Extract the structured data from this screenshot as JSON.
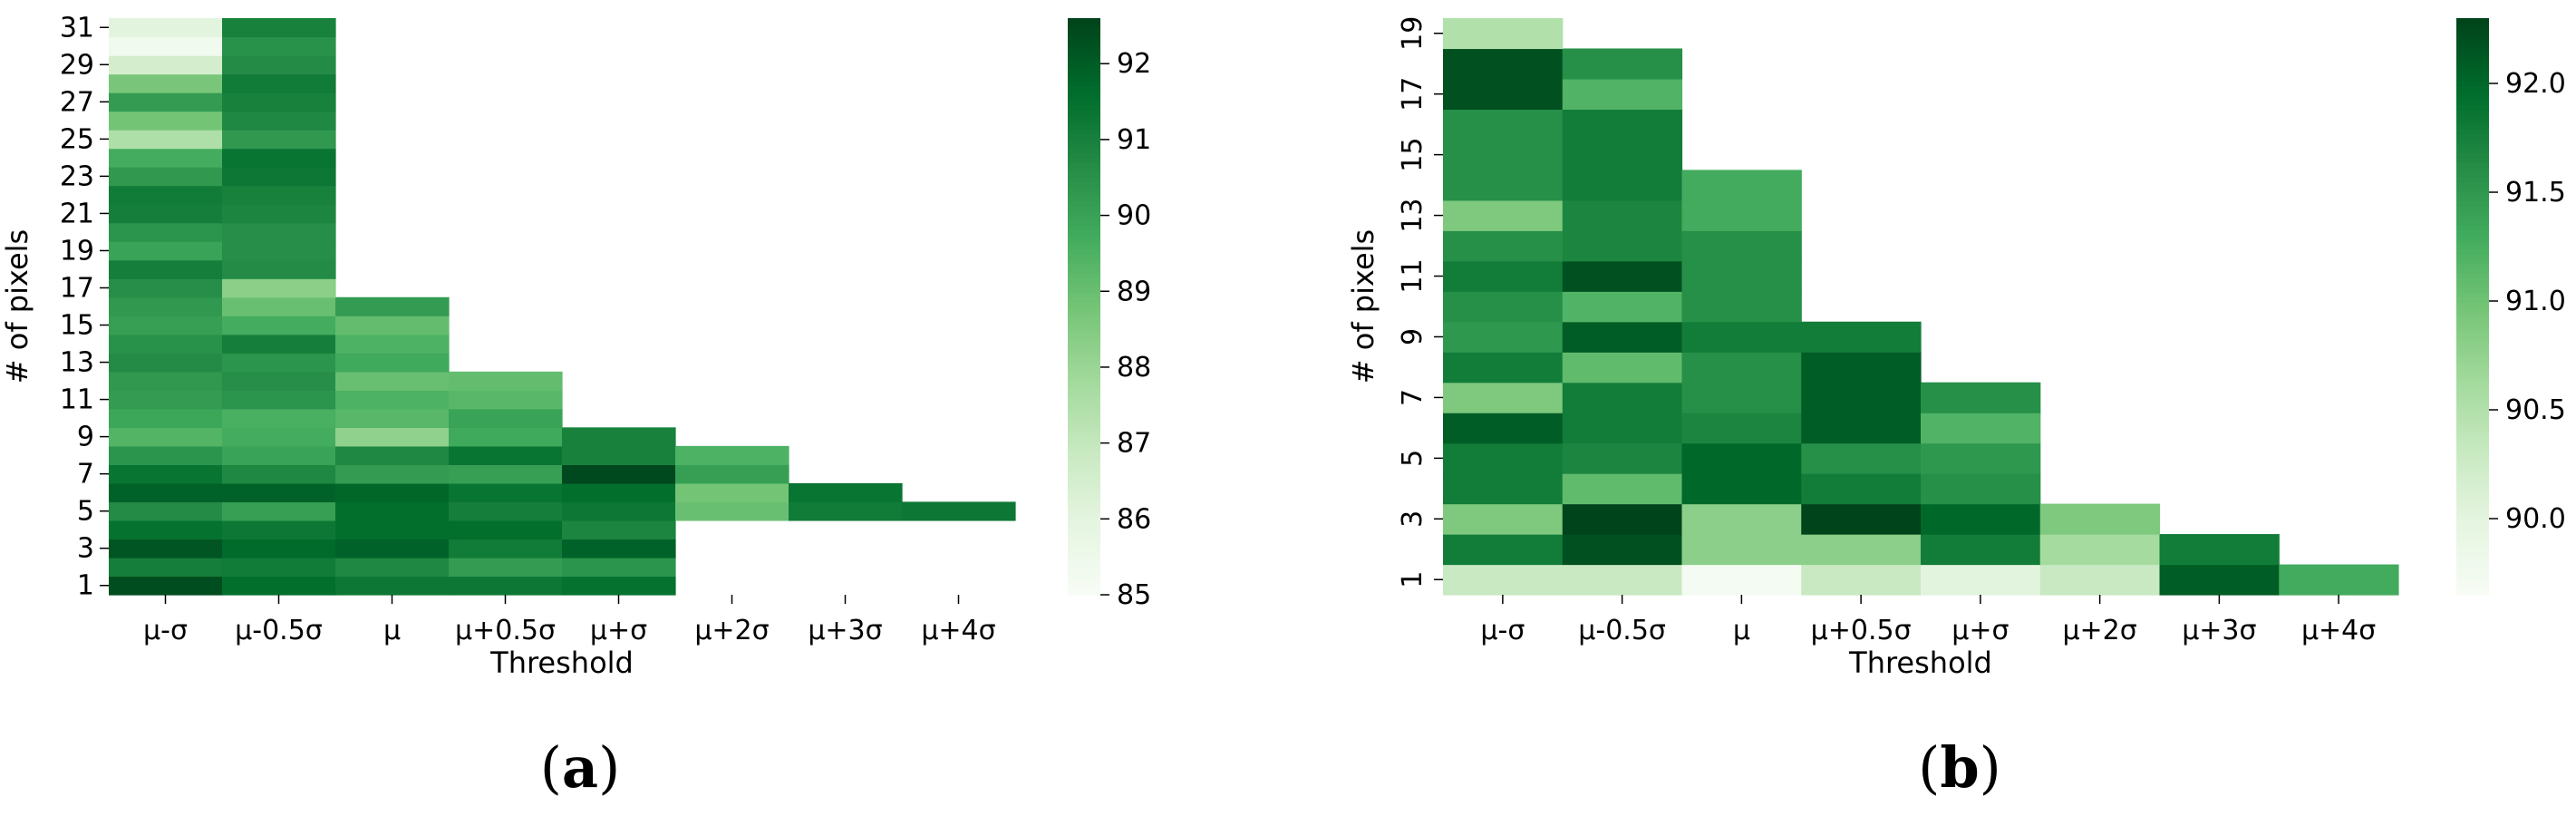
{
  "chart_data": [
    {
      "type": "heatmap",
      "panel_label": {
        "open": "(",
        "letter": "a",
        "close": ")"
      },
      "xlabel": "Threshold",
      "ylabel": "# of pixels",
      "categories": [
        "μ-σ",
        "μ-0.5σ",
        "μ",
        "μ+0.5σ",
        "μ+σ",
        "μ+2σ",
        "μ+3σ",
        "μ+4σ"
      ],
      "y_values": [
        1,
        2,
        3,
        4,
        5,
        6,
        7,
        8,
        9,
        10,
        11,
        12,
        13,
        14,
        15,
        16,
        17,
        18,
        19,
        20,
        21,
        22,
        23,
        24,
        25,
        26,
        27,
        28,
        29,
        30,
        31
      ],
      "y_tick_labels": [
        "1",
        "3",
        "5",
        "7",
        "9",
        "11",
        "13",
        "15",
        "17",
        "19",
        "21",
        "23",
        "25",
        "27",
        "29",
        "31"
      ],
      "colorbar": {
        "min": 85,
        "max": 92.6,
        "ticks": [
          "85",
          "86",
          "87",
          "88",
          "89",
          "90",
          "91",
          "92"
        ],
        "tick_values": [
          85,
          86,
          87,
          88,
          89,
          90,
          91,
          92
        ]
      },
      "colormap": "Greens",
      "values": [
        [
          92.4,
          91.6,
          91.3,
          91.3,
          91.5,
          null,
          null,
          null
        ],
        [
          91.1,
          91.2,
          90.8,
          90.2,
          90.4,
          null,
          null,
          null
        ],
        [
          92.2,
          91.7,
          91.9,
          91.2,
          91.9,
          null,
          null,
          null
        ],
        [
          91.5,
          91.3,
          91.6,
          91.6,
          90.9,
          null,
          null,
          null
        ],
        [
          90.7,
          90.1,
          91.6,
          91.1,
          91.3,
          89.0,
          91.2,
          91.3
        ],
        [
          91.9,
          91.9,
          91.8,
          91.4,
          91.6,
          88.8,
          91.4,
          null
        ],
        [
          91.4,
          90.8,
          90.2,
          90.1,
          92.5,
          90.1,
          null,
          null
        ],
        [
          90.4,
          90.0,
          90.8,
          91.4,
          91.0,
          89.5,
          null,
          null
        ],
        [
          89.4,
          89.7,
          88.2,
          89.8,
          91.0,
          null,
          null,
          null
        ],
        [
          89.9,
          89.6,
          89.3,
          90.0,
          null,
          null,
          null,
          null
        ],
        [
          90.2,
          90.4,
          89.5,
          89.3,
          null,
          null,
          null,
          null
        ],
        [
          90.3,
          90.6,
          89.0,
          89.1,
          null,
          null,
          null,
          null
        ],
        [
          90.7,
          90.4,
          89.8,
          null,
          null,
          null,
          null,
          null
        ],
        [
          90.5,
          91.1,
          89.5,
          null,
          null,
          null,
          null,
          null
        ],
        [
          90.1,
          89.7,
          89.1,
          null,
          null,
          null,
          null,
          null
        ],
        [
          90.3,
          89.0,
          90.2,
          null,
          null,
          null,
          null,
          null
        ],
        [
          90.6,
          88.3,
          null,
          null,
          null,
          null,
          null,
          null
        ],
        [
          91.1,
          90.7,
          null,
          null,
          null,
          null,
          null,
          null
        ],
        [
          90.0,
          90.6,
          null,
          null,
          null,
          null,
          null,
          null
        ],
        [
          90.4,
          90.6,
          null,
          null,
          null,
          null,
          null,
          null
        ],
        [
          91.1,
          90.9,
          null,
          null,
          null,
          null,
          null,
          null
        ],
        [
          91.2,
          91.0,
          null,
          null,
          null,
          null,
          null,
          null
        ],
        [
          90.3,
          91.3,
          null,
          null,
          null,
          null,
          null,
          null
        ],
        [
          89.7,
          91.4,
          null,
          null,
          null,
          null,
          null,
          null
        ],
        [
          87.5,
          90.3,
          null,
          null,
          null,
          null,
          null,
          null
        ],
        [
          88.8,
          90.8,
          null,
          null,
          null,
          null,
          null,
          null
        ],
        [
          90.2,
          91.0,
          null,
          null,
          null,
          null,
          null,
          null
        ],
        [
          88.7,
          91.2,
          null,
          null,
          null,
          null,
          null,
          null
        ],
        [
          86.5,
          90.7,
          null,
          null,
          null,
          null,
          null,
          null
        ],
        [
          85.3,
          90.5,
          null,
          null,
          null,
          null,
          null,
          null
        ],
        [
          86.0,
          91.0,
          null,
          null,
          null,
          null,
          null,
          null
        ]
      ]
    },
    {
      "type": "heatmap",
      "panel_label": {
        "open": "(",
        "letter": "b",
        "close": ")"
      },
      "xlabel": "Threshold",
      "ylabel": "# of pixels",
      "categories": [
        "μ-σ",
        "μ-0.5σ",
        "μ",
        "μ+0.5σ",
        "μ+σ",
        "μ+2σ",
        "μ+3σ",
        "μ+4σ"
      ],
      "y_values": [
        1,
        2,
        3,
        4,
        5,
        6,
        7,
        8,
        9,
        10,
        11,
        12,
        13,
        14,
        15,
        16,
        17,
        18,
        19
      ],
      "y_tick_labels": [
        "1",
        "3",
        "5",
        "7",
        "9",
        "11",
        "13",
        "15",
        "17",
        "19"
      ],
      "colorbar": {
        "min": 89.65,
        "max": 92.3,
        "ticks": [
          "90.0",
          "90.5",
          "91.0",
          "91.5",
          "92.0"
        ],
        "tick_values": [
          90.0,
          90.5,
          91.0,
          91.5,
          92.0
        ]
      },
      "colormap": "Greens",
      "values": [
        [
          90.3,
          90.3,
          89.7,
          90.3,
          90.0,
          90.3,
          92.1,
          91.3
        ],
        [
          91.8,
          92.2,
          90.8,
          90.8,
          91.8,
          90.6,
          91.8,
          null
        ],
        [
          90.9,
          92.3,
          90.8,
          92.3,
          92.0,
          90.9,
          null,
          null
        ],
        [
          91.8,
          91.1,
          92.0,
          91.8,
          91.6,
          null,
          null,
          null
        ],
        [
          91.8,
          91.7,
          92.0,
          91.6,
          91.5,
          null,
          null,
          null
        ],
        [
          92.1,
          91.8,
          91.7,
          92.1,
          91.2,
          null,
          null,
          null
        ],
        [
          90.9,
          91.8,
          91.6,
          92.1,
          91.6,
          null,
          null,
          null
        ],
        [
          91.8,
          91.1,
          91.6,
          92.1,
          null,
          null,
          null,
          null
        ],
        [
          91.5,
          92.1,
          91.8,
          91.8,
          null,
          null,
          null,
          null
        ],
        [
          91.6,
          91.2,
          91.6,
          null,
          null,
          null,
          null,
          null
        ],
        [
          91.8,
          92.2,
          91.6,
          null,
          null,
          null,
          null,
          null
        ],
        [
          91.6,
          91.7,
          91.6,
          null,
          null,
          null,
          null,
          null
        ],
        [
          90.9,
          91.7,
          91.3,
          null,
          null,
          null,
          null,
          null
        ],
        [
          91.6,
          91.8,
          91.3,
          null,
          null,
          null,
          null,
          null
        ],
        [
          91.6,
          91.8,
          null,
          null,
          null,
          null,
          null,
          null
        ],
        [
          91.6,
          91.8,
          null,
          null,
          null,
          null,
          null,
          null
        ],
        [
          92.2,
          91.2,
          null,
          null,
          null,
          null,
          null,
          null
        ],
        [
          92.2,
          91.6,
          null,
          null,
          null,
          null,
          null,
          null
        ],
        [
          90.5,
          null,
          null,
          null,
          null,
          null,
          null,
          null
        ]
      ]
    }
  ]
}
